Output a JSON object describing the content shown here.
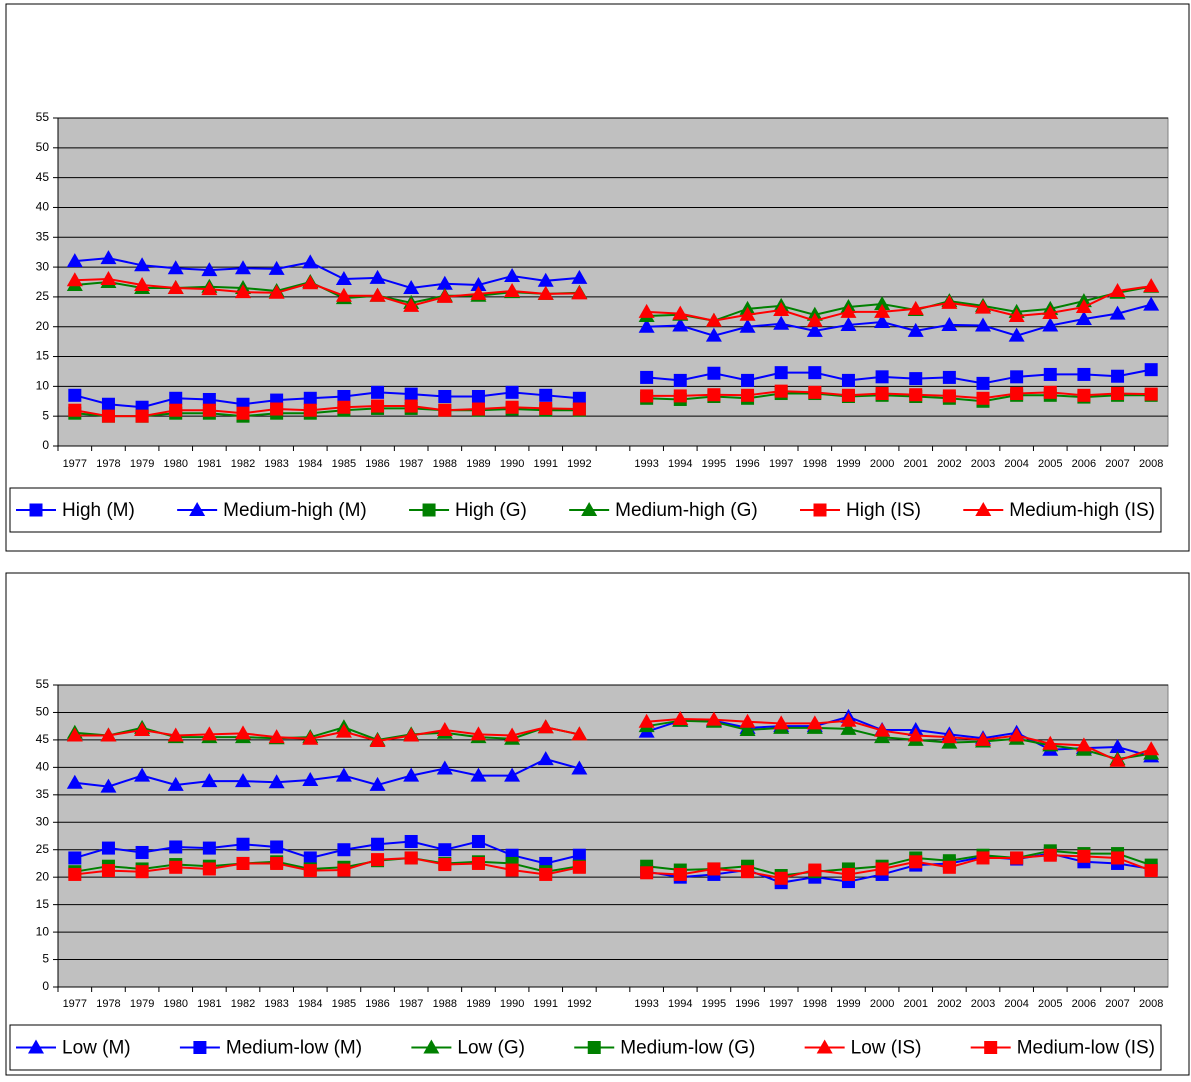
{
  "chart_data": [
    {
      "type": "line",
      "categories": [
        "1977",
        "1978",
        "1979",
        "1980",
        "1981",
        "1982",
        "1983",
        "1984",
        "1985",
        "1986",
        "1987",
        "1988",
        "1989",
        "1990",
        "1991",
        "1992",
        null,
        "1993",
        "1994",
        "1995",
        "1996",
        "1997",
        "1998",
        "1999",
        "2000",
        "2001",
        "2002",
        "2003",
        "2004",
        "2005",
        "2006",
        "2007",
        "2008"
      ],
      "ylim": [
        0,
        55
      ],
      "yticks": [
        0,
        5,
        10,
        15,
        20,
        25,
        30,
        35,
        40,
        45,
        50,
        55
      ],
      "grid": true,
      "series": [
        {
          "name": "High (M)",
          "color": "#0000ff",
          "marker": "square",
          "values": [
            8.5,
            7,
            6.5,
            8,
            7.8,
            7,
            7.7,
            8,
            8.3,
            9,
            8.7,
            8.3,
            8.3,
            9,
            8.5,
            8,
            null,
            11.5,
            11,
            12.2,
            11,
            12.3,
            12.3,
            11,
            11.6,
            11.3,
            11.5,
            10.5,
            11.6,
            12,
            12,
            11.7,
            12.8
          ]
        },
        {
          "name": "Medium-high (M)",
          "color": "#0000ff",
          "marker": "triangle",
          "values": [
            31,
            31.5,
            30.3,
            29.8,
            29.5,
            29.8,
            29.7,
            30.8,
            28,
            28.2,
            26.5,
            27.2,
            27,
            28.5,
            27.7,
            28.2,
            null,
            20,
            20.2,
            18.5,
            20,
            20.5,
            19.3,
            20.3,
            20.8,
            19.3,
            20.3,
            20.2,
            18.5,
            20.2,
            21.3,
            22.2,
            23.7
          ]
        },
        {
          "name": "High (G)",
          "color": "#008000",
          "marker": "square",
          "values": [
            5.5,
            5,
            5,
            5.5,
            5.5,
            5,
            5.5,
            5.5,
            6,
            6.3,
            6.3,
            6,
            6,
            6.2,
            6,
            6,
            null,
            8,
            7.8,
            8.3,
            8,
            8.8,
            8.8,
            8.3,
            8.5,
            8.3,
            8,
            7.5,
            8.5,
            8.5,
            8.2,
            8.5,
            8.5
          ]
        },
        {
          "name": "Medium-high (G)",
          "color": "#008000",
          "marker": "triangle",
          "values": [
            27,
            27.5,
            26.5,
            26.5,
            26.7,
            26.5,
            26,
            27.5,
            24.8,
            25.2,
            24,
            25.2,
            25.2,
            25.8,
            25.5,
            25.7,
            null,
            21.8,
            22,
            21,
            23,
            23.5,
            22,
            23.3,
            23.8,
            22.8,
            24.3,
            23.5,
            22.5,
            23,
            24.3,
            25.7,
            26.7
          ]
        },
        {
          "name": "High (IS)",
          "color": "#ff0000",
          "marker": "square",
          "values": [
            6,
            5,
            5,
            6,
            6,
            5.5,
            6.2,
            6,
            6.5,
            6.7,
            6.7,
            6,
            6.2,
            6.5,
            6.3,
            6.2,
            null,
            8.4,
            8.4,
            8.6,
            8.5,
            9.2,
            9,
            8.5,
            8.8,
            8.6,
            8.4,
            8,
            8.8,
            9,
            8.5,
            8.8,
            8.7
          ]
        },
        {
          "name": "Medium-high (IS)",
          "color": "#ff0000",
          "marker": "triangle",
          "values": [
            27.8,
            28,
            27,
            26.5,
            26.3,
            25.8,
            25.7,
            27.3,
            25.2,
            25.2,
            23.5,
            25,
            25.5,
            26,
            25.5,
            25.6,
            null,
            22.5,
            22.2,
            21,
            22,
            22.8,
            21,
            22.5,
            22.5,
            23,
            24,
            23.2,
            21.8,
            22.3,
            23.3,
            26,
            26.8
          ]
        }
      ]
    },
    {
      "type": "line",
      "categories": [
        "1977",
        "1978",
        "1979",
        "1980",
        "1981",
        "1982",
        "1983",
        "1984",
        "1985",
        "1986",
        "1987",
        "1988",
        "1989",
        "1990",
        "1991",
        "1992",
        null,
        "1993",
        "1994",
        "1995",
        "1996",
        "1997",
        "1998",
        "1999",
        "2000",
        "2001",
        "2002",
        "2003",
        "2004",
        "2005",
        "2006",
        "2007",
        "2008"
      ],
      "ylim": [
        0,
        55
      ],
      "yticks": [
        0,
        5,
        10,
        15,
        20,
        25,
        30,
        35,
        40,
        45,
        50,
        55
      ],
      "grid": true,
      "series": [
        {
          "name": "Low (M)",
          "color": "#0000ff",
          "marker": "triangle",
          "values": [
            37.2,
            36.5,
            38.5,
            36.8,
            37.5,
            37.5,
            37.3,
            37.7,
            38.5,
            36.8,
            38.5,
            39.8,
            38.5,
            38.5,
            41.5,
            39.8,
            null,
            46.5,
            48.5,
            48.5,
            47.2,
            47.5,
            47.5,
            49.2,
            46.8,
            46.8,
            46,
            45.3,
            46.3,
            43.2,
            43.5,
            43.7,
            42
          ]
        },
        {
          "name": "Medium-low (M)",
          "color": "#0000ff",
          "marker": "square",
          "values": [
            23.5,
            25.3,
            24.5,
            25.5,
            25.3,
            26,
            25.5,
            23.5,
            25,
            26,
            26.5,
            25,
            26.5,
            24,
            22.5,
            24,
            null,
            21,
            20,
            20.5,
            21.3,
            19,
            20,
            19.2,
            20.5,
            22.2,
            22.5,
            23.7,
            23.3,
            24.3,
            22.8,
            22.5,
            21.5
          ]
        },
        {
          "name": "Low (G)",
          "color": "#008000",
          "marker": "triangle",
          "values": [
            46.3,
            45.8,
            47.2,
            45.5,
            45.5,
            45.5,
            45.3,
            45.5,
            47.3,
            45,
            46,
            46.3,
            45.5,
            45.2,
            47.3,
            46,
            null,
            47.5,
            48.5,
            48.3,
            46.8,
            47.2,
            47.2,
            47,
            45.5,
            45,
            44.5,
            44.7,
            45.2,
            44,
            43.2,
            41.5,
            42.5
          ]
        },
        {
          "name": "Medium-low (G)",
          "color": "#008000",
          "marker": "square",
          "values": [
            21,
            22,
            21.5,
            22.3,
            22,
            22.5,
            22.8,
            21.5,
            21.8,
            23,
            23.5,
            22.5,
            22.8,
            22.5,
            21,
            22,
            null,
            22,
            21.3,
            21.5,
            22,
            20.3,
            21,
            21.5,
            22,
            23.5,
            23,
            24,
            23.5,
            24.8,
            24.3,
            24.3,
            22.2
          ]
        },
        {
          "name": "Low (IS)",
          "color": "#ff0000",
          "marker": "triangle",
          "values": [
            45.8,
            45.8,
            46.8,
            45.8,
            46,
            46.2,
            45.5,
            45.2,
            46.5,
            44.8,
            45.8,
            46.8,
            46,
            45.8,
            47.3,
            46,
            null,
            48.3,
            48.8,
            48.7,
            48.3,
            48,
            48,
            48.5,
            46.7,
            45.8,
            45.5,
            45,
            45.8,
            44.3,
            44,
            41.2,
            43.3
          ]
        },
        {
          "name": "Medium-low (IS)",
          "color": "#ff0000",
          "marker": "square",
          "values": [
            20.5,
            21.2,
            21,
            21.8,
            21.5,
            22.5,
            22.5,
            21.2,
            21.3,
            23.2,
            23.5,
            22.3,
            22.5,
            21.3,
            20.5,
            21.8,
            null,
            20.8,
            20.5,
            21.5,
            21,
            19.8,
            21.3,
            20.5,
            21.5,
            22.8,
            21.8,
            23.5,
            23.5,
            24,
            23.8,
            23.5,
            21.2
          ]
        }
      ]
    }
  ]
}
